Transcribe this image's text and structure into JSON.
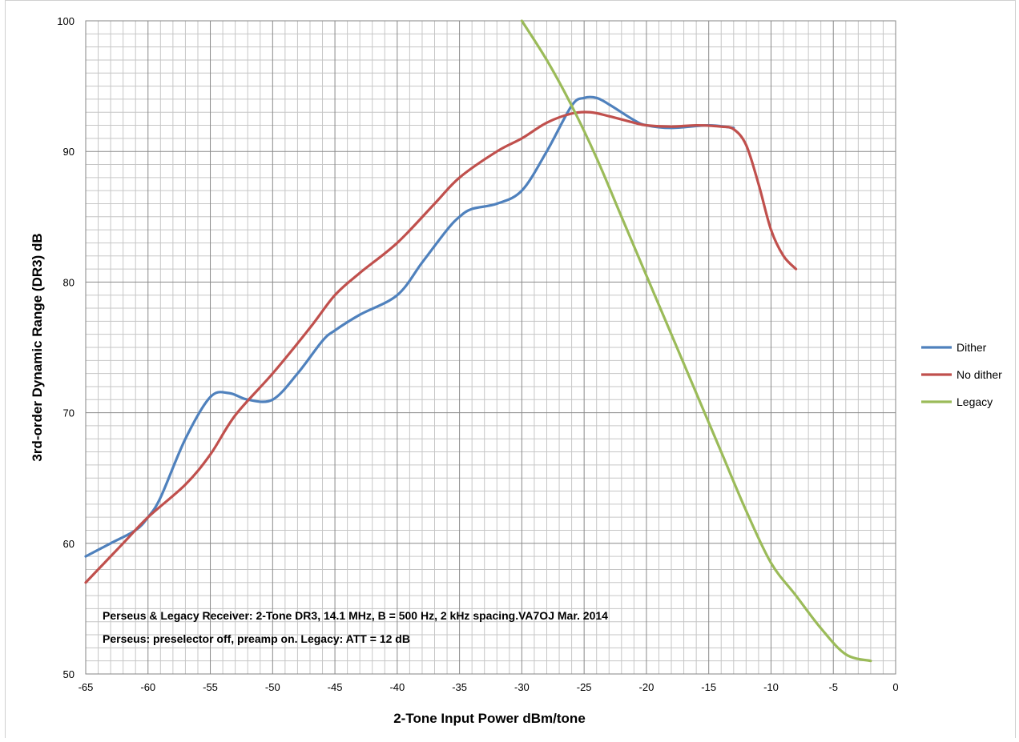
{
  "chart_data": {
    "type": "line",
    "xlabel": "2-Tone Input Power dBm/tone",
    "ylabel": "3rd-order Dynamic Range (DR3) dB",
    "xlim": [
      -65,
      0
    ],
    "ylim": [
      50,
      100
    ],
    "x_ticks": [
      -65,
      -60,
      -55,
      -50,
      -45,
      -40,
      -35,
      -30,
      -25,
      -20,
      -15,
      -10,
      -5,
      0
    ],
    "y_ticks": [
      50,
      60,
      70,
      80,
      90,
      100
    ],
    "grid": true,
    "grid_minor_x": 1,
    "grid_minor_y": 1,
    "legend_position": "right",
    "annotations": [
      "Perseus & Legacy Receiver:  2-Tone DR3, 14.1 MHz, B = 500 Hz,  2 kHz spacing.VA7OJ  Mar. 2014",
      "Perseus: preselector off, preamp on. Legacy: ATT = 12 dB"
    ],
    "series": [
      {
        "name": "Dither",
        "color": "#4f81bd",
        "x": [
          -65,
          -63,
          -61,
          -60,
          -59,
          -57,
          -55,
          -53.5,
          -52,
          -50,
          -48,
          -46,
          -45,
          -43,
          -40,
          -38,
          -36,
          -35,
          -34,
          -32,
          -30,
          -28,
          -26,
          -25,
          -24,
          -23,
          -21,
          -20,
          -18,
          -15,
          -13
        ],
        "y": [
          59,
          60,
          61,
          62,
          63.5,
          68,
          71.2,
          71.5,
          71,
          71,
          73,
          75.5,
          76.3,
          77.5,
          79,
          81.5,
          84,
          85,
          85.6,
          86,
          87,
          90,
          93.5,
          94.1,
          94.1,
          93.6,
          92.4,
          92.0,
          91.8,
          92.0,
          91.8
        ]
      },
      {
        "name": "No dither",
        "color": "#c0504d",
        "x": [
          -65,
          -62,
          -60,
          -57,
          -55,
          -53,
          -50,
          -47,
          -45,
          -43,
          -40,
          -37,
          -35,
          -32,
          -30,
          -28,
          -26,
          -24.5,
          -23,
          -21,
          -20,
          -18,
          -16,
          -14,
          -13,
          -12,
          -11,
          -10,
          -9,
          -8
        ],
        "y": [
          57,
          60,
          62,
          64.5,
          66.8,
          69.8,
          73,
          76.5,
          79,
          80.7,
          83,
          86,
          88,
          90,
          91,
          92.2,
          92.9,
          93.0,
          92.7,
          92.2,
          92.0,
          91.9,
          92.0,
          91.9,
          91.7,
          90.5,
          87.5,
          84,
          82,
          81
        ]
      },
      {
        "name": "Legacy",
        "color": "#9bbb59",
        "x": [
          -30,
          -28,
          -26,
          -24,
          -22,
          -20,
          -18,
          -16,
          -14,
          -12,
          -10,
          -8,
          -6,
          -4,
          -2
        ],
        "y": [
          100,
          97,
          93.5,
          89.5,
          85,
          80.5,
          76,
          71.5,
          67,
          62.5,
          58.5,
          56,
          53.5,
          51.5,
          51
        ]
      }
    ]
  }
}
